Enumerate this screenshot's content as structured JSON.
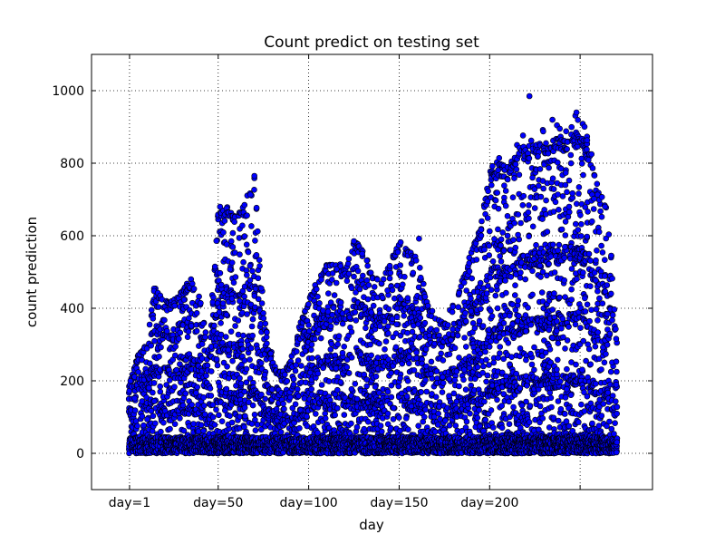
{
  "chart_data": {
    "type": "scatter",
    "title": "Count predict on testing set",
    "xlabel": "day",
    "ylabel": "count prediction",
    "xlim": [
      -20,
      290
    ],
    "ylim": [
      -100,
      1100
    ],
    "grid": true,
    "grid_style": "dotted",
    "marker_color": "#0000ff",
    "marker_edge": "#000000",
    "xticks": [
      {
        "value": 1,
        "label": "day=1"
      },
      {
        "value": 50,
        "label": "day=50"
      },
      {
        "value": 100,
        "label": "day=100"
      },
      {
        "value": 150,
        "label": "day=150"
      },
      {
        "value": 200,
        "label": "day=200"
      },
      {
        "value": 250,
        "label": ""
      }
    ],
    "yticks": [
      {
        "value": 0,
        "label": "0"
      },
      {
        "value": 200,
        "label": "200"
      },
      {
        "value": 400,
        "label": "400"
      },
      {
        "value": 600,
        "label": "600"
      },
      {
        "value": 800,
        "label": "800"
      },
      {
        "value": 1000,
        "label": "1000"
      }
    ],
    "envelope": {
      "x": [
        1,
        5,
        10,
        15,
        20,
        25,
        30,
        35,
        40,
        45,
        50,
        55,
        60,
        65,
        70,
        75,
        80,
        85,
        90,
        95,
        100,
        105,
        110,
        115,
        120,
        125,
        130,
        135,
        140,
        145,
        150,
        155,
        160,
        165,
        170,
        175,
        180,
        185,
        190,
        195,
        200,
        205,
        210,
        215,
        220,
        225,
        230,
        235,
        240,
        245,
        250,
        255,
        260,
        265,
        270
      ],
      "y_max": [
        190,
        260,
        320,
        460,
        430,
        420,
        450,
        480,
        430,
        300,
        660,
        680,
        650,
        700,
        760,
        400,
        250,
        220,
        260,
        350,
        430,
        480,
        520,
        530,
        510,
        590,
        560,
        500,
        480,
        520,
        590,
        560,
        540,
        420,
        380,
        360,
        420,
        480,
        560,
        620,
        790,
        820,
        800,
        860,
        890,
        890,
        900,
        920,
        910,
        940,
        930,
        860,
        720,
        690,
        350
      ],
      "bands": [
        20,
        110,
        200,
        300,
        470
      ]
    },
    "highlights": [
      {
        "x": 222,
        "y": 985
      },
      {
        "x": 248,
        "y": 940
      },
      {
        "x": 70,
        "y": 765
      },
      {
        "x": 51,
        "y": 680
      },
      {
        "x": 161,
        "y": 592
      },
      {
        "x": 125,
        "y": 585
      }
    ]
  }
}
